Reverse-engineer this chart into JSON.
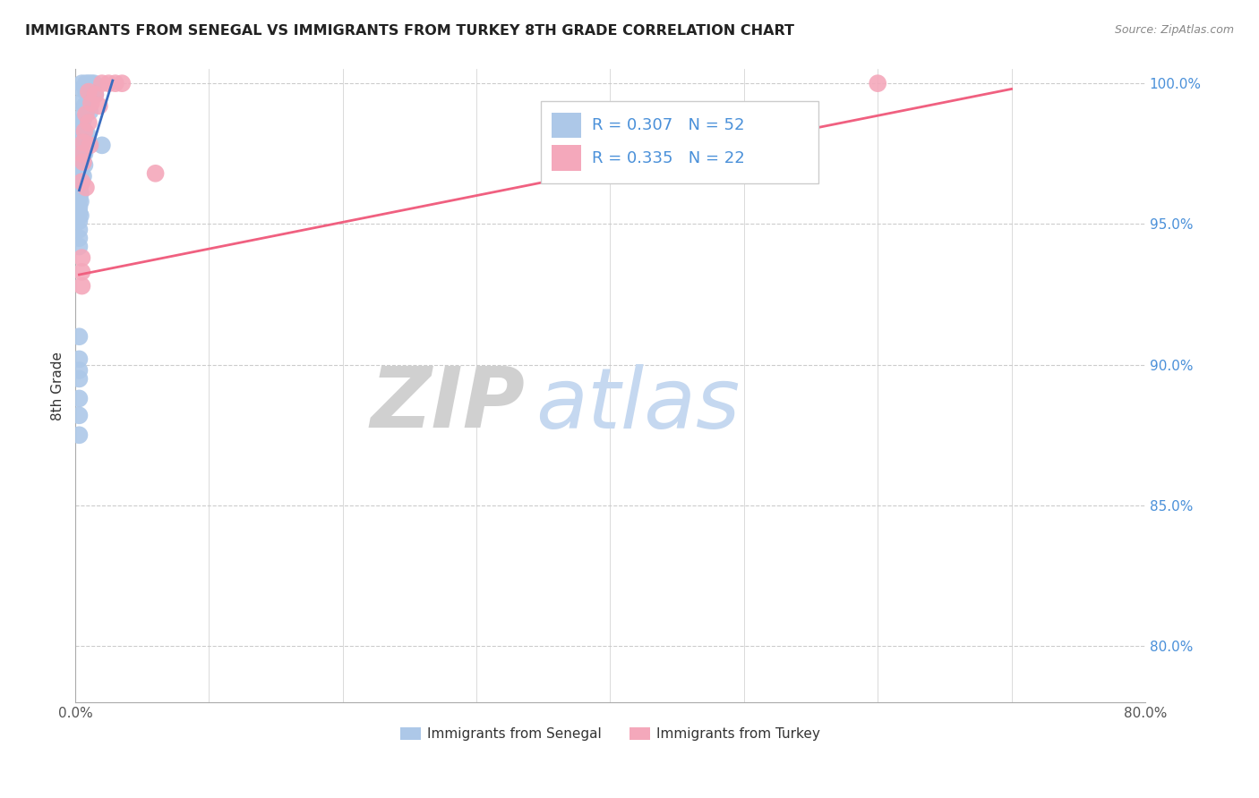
{
  "title": "IMMIGRANTS FROM SENEGAL VS IMMIGRANTS FROM TURKEY 8TH GRADE CORRELATION CHART",
  "source": "Source: ZipAtlas.com",
  "ylabel": "8th Grade",
  "watermark_zip": "ZIP",
  "watermark_atlas": "atlas",
  "xlim": [
    0.0,
    0.8
  ],
  "ylim": [
    0.78,
    1.005
  ],
  "xticks": [
    0.0,
    0.1,
    0.2,
    0.3,
    0.4,
    0.5,
    0.6,
    0.7,
    0.8
  ],
  "yticks": [
    0.8,
    0.85,
    0.9,
    0.95,
    1.0
  ],
  "yticklabels": [
    "80.0%",
    "85.0%",
    "90.0%",
    "95.0%",
    "100.0%"
  ],
  "legend1_r": "0.307",
  "legend1_n": "52",
  "legend2_r": "0.335",
  "legend2_n": "22",
  "senegal_color": "#adc8e8",
  "turkey_color": "#f4a8bb",
  "senegal_line_color": "#3a6cbf",
  "turkey_line_color": "#f06080",
  "grid_color": "#cccccc",
  "right_axis_color": "#4a90d9",
  "senegal_points": [
    [
      0.005,
      1.0
    ],
    [
      0.008,
      1.0
    ],
    [
      0.01,
      1.0
    ],
    [
      0.012,
      1.0
    ],
    [
      0.014,
      1.0
    ],
    [
      0.005,
      0.998
    ],
    [
      0.008,
      0.997
    ],
    [
      0.01,
      0.996
    ],
    [
      0.015,
      0.996
    ],
    [
      0.004,
      0.993
    ],
    [
      0.007,
      0.992
    ],
    [
      0.009,
      0.991
    ],
    [
      0.011,
      0.99
    ],
    [
      0.005,
      0.988
    ],
    [
      0.006,
      0.987
    ],
    [
      0.003,
      0.985
    ],
    [
      0.005,
      0.984
    ],
    [
      0.007,
      0.983
    ],
    [
      0.009,
      0.982
    ],
    [
      0.004,
      0.98
    ],
    [
      0.006,
      0.979
    ],
    [
      0.01,
      0.979
    ],
    [
      0.003,
      0.977
    ],
    [
      0.005,
      0.976
    ],
    [
      0.007,
      0.975
    ],
    [
      0.003,
      0.973
    ],
    [
      0.005,
      0.972
    ],
    [
      0.007,
      0.971
    ],
    [
      0.003,
      0.969
    ],
    [
      0.004,
      0.968
    ],
    [
      0.006,
      0.967
    ],
    [
      0.003,
      0.965
    ],
    [
      0.004,
      0.964
    ],
    [
      0.003,
      0.962
    ],
    [
      0.004,
      0.961
    ],
    [
      0.003,
      0.959
    ],
    [
      0.004,
      0.958
    ],
    [
      0.003,
      0.956
    ],
    [
      0.003,
      0.954
    ],
    [
      0.004,
      0.953
    ],
    [
      0.003,
      0.951
    ],
    [
      0.02,
      0.978
    ],
    [
      0.003,
      0.948
    ],
    [
      0.003,
      0.945
    ],
    [
      0.003,
      0.942
    ],
    [
      0.003,
      0.91
    ],
    [
      0.003,
      0.902
    ],
    [
      0.003,
      0.898
    ],
    [
      0.003,
      0.895
    ],
    [
      0.003,
      0.888
    ],
    [
      0.003,
      0.882
    ],
    [
      0.003,
      0.875
    ]
  ],
  "turkey_points": [
    [
      0.02,
      1.0
    ],
    [
      0.025,
      1.0
    ],
    [
      0.03,
      1.0
    ],
    [
      0.035,
      1.0
    ],
    [
      0.6,
      1.0
    ],
    [
      0.01,
      0.997
    ],
    [
      0.015,
      0.996
    ],
    [
      0.012,
      0.993
    ],
    [
      0.018,
      0.992
    ],
    [
      0.008,
      0.989
    ],
    [
      0.01,
      0.986
    ],
    [
      0.007,
      0.983
    ],
    [
      0.006,
      0.979
    ],
    [
      0.011,
      0.978
    ],
    [
      0.005,
      0.975
    ],
    [
      0.006,
      0.972
    ],
    [
      0.06,
      0.968
    ],
    [
      0.005,
      0.965
    ],
    [
      0.008,
      0.963
    ],
    [
      0.005,
      0.938
    ],
    [
      0.005,
      0.933
    ],
    [
      0.005,
      0.928
    ]
  ],
  "senegal_trendline": [
    [
      0.003,
      0.962
    ],
    [
      0.028,
      1.001
    ]
  ],
  "turkey_trendline": [
    [
      0.003,
      0.932
    ],
    [
      0.7,
      0.998
    ]
  ]
}
